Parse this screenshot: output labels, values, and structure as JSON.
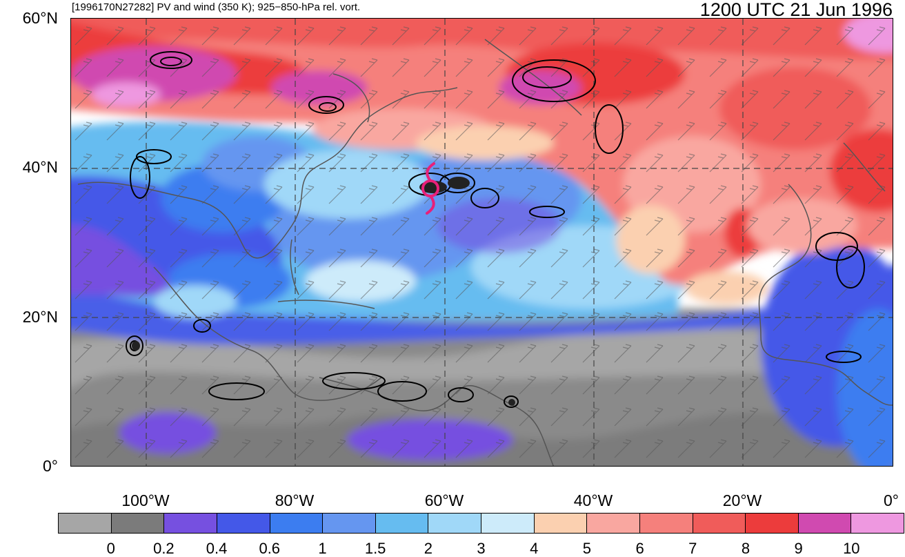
{
  "header": {
    "left_title": "[1996170N27282] PV and wind (350 K); 925−850-hPa rel. vort.",
    "right_title": "1200 UTC 21 Jun 1996"
  },
  "axes": {
    "lat_labels": [
      "60°N",
      "40°N",
      "20°N",
      "0°"
    ],
    "lon_labels": [
      "100°W",
      "80°W",
      "60°W",
      "40°W",
      "20°W",
      "0°"
    ]
  },
  "colorbar": {
    "colors": [
      "#a6a6a6",
      "#7b7b7b",
      "#7650e0",
      "#4458e8",
      "#3c7df0",
      "#6596f0",
      "#66bcf0",
      "#a0d8f8",
      "#cdebfa",
      "#fbd0b0",
      "#f9a7a0",
      "#f5807c",
      "#f05c5a",
      "#ec3c3c",
      "#d04ab0",
      "#ee98e0"
    ],
    "labels": [
      "0",
      "0.2",
      "0.4",
      "0.6",
      "1",
      "1.5",
      "2",
      "3",
      "4",
      "5",
      "6",
      "7",
      "8",
      "9",
      "10"
    ]
  },
  "storm_symbol": {
    "color": "#e8207a",
    "icon": "tropical-storm-symbol"
  }
}
